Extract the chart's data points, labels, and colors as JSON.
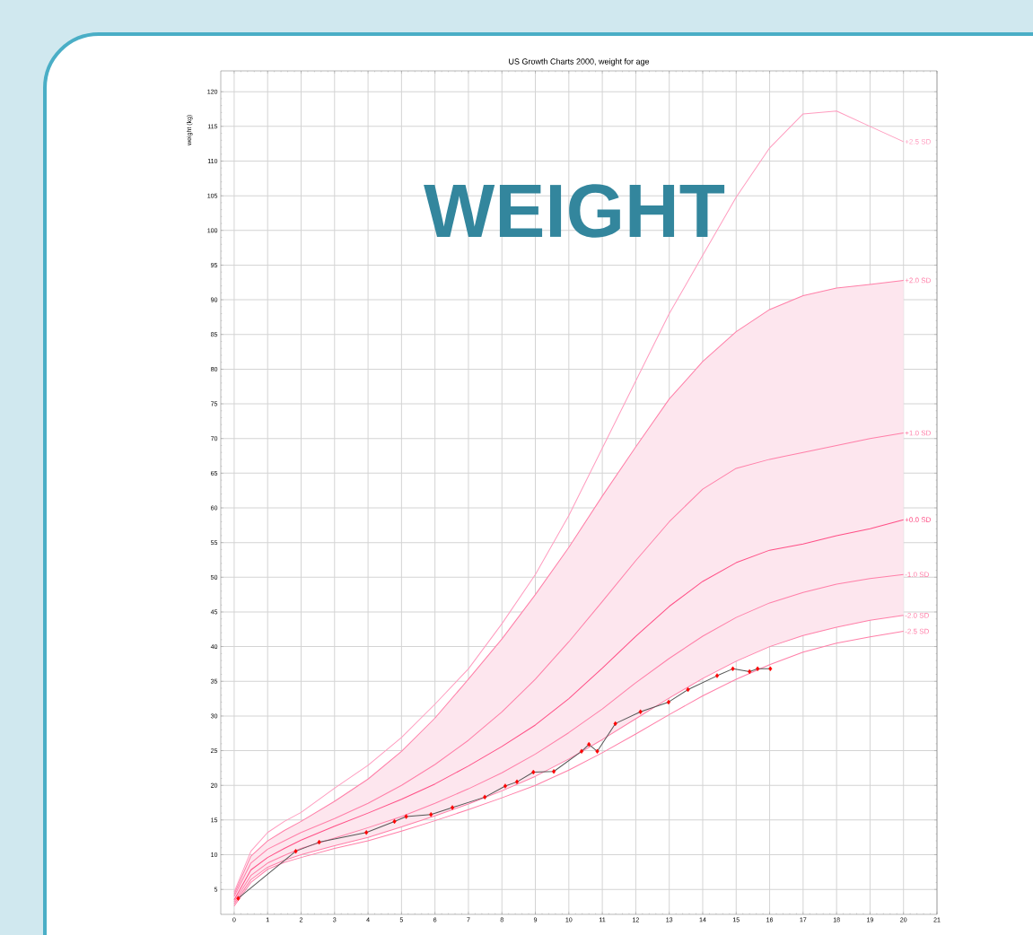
{
  "chart_data": {
    "type": "line",
    "title": "US Growth Charts 2000, weight for age",
    "ylabel": "weight (kg)",
    "annotations": [
      "WEIGHT"
    ],
    "x": [
      0,
      0.5,
      1,
      1.5,
      2,
      3,
      4,
      5,
      6,
      7,
      8,
      9,
      10,
      11,
      12,
      13,
      14,
      15,
      16,
      17,
      18,
      19,
      20
    ],
    "series": [
      {
        "name": "+2.5 SD",
        "color": "#ff9cbf",
        "values": [
          4.6,
          10.5,
          13.2,
          14.8,
          16.1,
          19.6,
          22.9,
          26.9,
          31.7,
          36.8,
          43.3,
          50.4,
          58.9,
          68.6,
          78.3,
          88.0,
          96.4,
          104.8,
          111.9,
          116.8,
          117.2,
          115.0,
          112.8
        ]
      },
      {
        "name": "+2.0 SD",
        "color": "#ff7fa8",
        "values": [
          4.3,
          9.8,
          12.0,
          13.5,
          14.8,
          17.7,
          20.9,
          24.9,
          29.7,
          35.3,
          41.1,
          47.5,
          54.3,
          61.7,
          68.8,
          75.7,
          81.1,
          85.4,
          88.6,
          90.6,
          91.7,
          92.2,
          92.8
        ]
      },
      {
        "name": "+1.0 SD",
        "color": "#ff7fa8",
        "values": [
          4.0,
          8.8,
          10.8,
          12.0,
          13.2,
          15.2,
          17.4,
          20.0,
          23.0,
          26.5,
          30.6,
          35.3,
          40.7,
          46.5,
          52.4,
          58.0,
          62.7,
          65.7,
          67.0,
          68.0,
          69.0,
          70.0,
          70.8
        ]
      },
      {
        "name": "+0.0 SD",
        "color": "#ff4f86",
        "values": [
          3.5,
          7.8,
          9.6,
          10.9,
          12.1,
          14.1,
          16.0,
          18.0,
          20.2,
          22.8,
          25.6,
          28.7,
          32.5,
          36.9,
          41.5,
          45.8,
          49.4,
          52.1,
          53.9,
          54.8,
          56.0,
          57.0,
          58.3
        ],
        "lower": [
          2.9,
          6.4,
          8.2,
          9.2,
          10.0,
          11.3,
          12.5,
          14.0,
          15.6,
          17.3,
          19.2,
          21.3,
          23.8,
          26.6,
          29.6,
          32.6,
          35.4,
          37.9,
          40.0,
          41.6,
          42.8,
          43.8,
          44.5
        ],
        "upper": [
          4.3,
          9.8,
          12.0,
          13.5,
          14.8,
          17.7,
          20.9,
          24.9,
          29.7,
          35.3,
          41.1,
          47.5,
          54.3,
          61.7,
          68.8,
          75.7,
          81.1,
          85.4,
          88.6,
          90.6,
          91.7,
          92.2,
          92.8
        ]
      },
      {
        "name": "-1.0 SD",
        "color": "#ff7fa8",
        "values": [
          3.2,
          7.0,
          8.8,
          9.9,
          10.9,
          12.4,
          13.9,
          15.5,
          17.4,
          19.5,
          21.8,
          24.5,
          27.6,
          31.0,
          34.8,
          38.3,
          41.5,
          44.2,
          46.3,
          47.8,
          49.0,
          49.8,
          50.4
        ]
      },
      {
        "name": "-2.0 SD",
        "color": "#ff7fa8",
        "values": [
          2.9,
          6.4,
          8.2,
          9.2,
          10.0,
          11.3,
          12.5,
          14.0,
          15.6,
          17.3,
          19.2,
          21.3,
          23.8,
          26.6,
          29.6,
          32.6,
          35.4,
          37.9,
          40.0,
          41.6,
          42.8,
          43.8,
          44.5
        ]
      },
      {
        "name": "-2.5 SD",
        "color": "#ff7fa8",
        "values": [
          2.6,
          6.0,
          7.9,
          8.9,
          9.6,
          10.9,
          12.0,
          13.4,
          14.9,
          16.5,
          18.2,
          20.0,
          22.2,
          24.7,
          27.4,
          30.2,
          32.9,
          35.3,
          37.4,
          39.2,
          40.5,
          41.4,
          42.2
        ]
      },
      {
        "type": "line",
        "color": "#555555",
        "x": [
          0.12,
          1.84,
          2.54,
          3.95,
          4.79,
          5.14,
          5.88,
          6.52,
          7.49,
          8.1,
          8.45,
          8.94,
          9.55,
          10.38,
          10.6,
          10.85,
          11.39,
          12.14,
          12.98,
          13.56,
          14.43,
          14.9,
          15.4,
          15.64,
          16.02
        ],
        "values": [
          3.7,
          10.5,
          11.8,
          13.2,
          14.8,
          15.5,
          15.8,
          16.8,
          18.3,
          19.9,
          20.5,
          21.9,
          22.0,
          24.9,
          25.9,
          24.9,
          28.9,
          30.6,
          32.0,
          33.8,
          35.8,
          36.8,
          36.4,
          36.8,
          36.8
        ]
      },
      {
        "type": "scatter",
        "marker": "diamond",
        "color": "#ff0000",
        "x": [
          0.12,
          1.84,
          2.54,
          3.95,
          4.79,
          5.14,
          5.88,
          6.52,
          7.49,
          8.1,
          8.45,
          8.94,
          9.55,
          10.38,
          10.6,
          10.85,
          11.39,
          12.14,
          12.98,
          13.56,
          14.43,
          14.9,
          15.4,
          15.64,
          16.02
        ],
        "values": [
          3.7,
          10.5,
          11.8,
          13.2,
          14.8,
          15.5,
          15.8,
          16.8,
          18.3,
          19.9,
          20.5,
          21.9,
          22.0,
          24.9,
          25.9,
          24.9,
          28.9,
          30.6,
          32.0,
          33.8,
          35.8,
          36.8,
          36.4,
          36.8,
          36.8
        ]
      }
    ],
    "xlim": [
      -0.4,
      21
    ],
    "ylim": [
      1.4,
      123
    ],
    "xticks": [
      0,
      1,
      2,
      3,
      4,
      5,
      6,
      7,
      8,
      9,
      10,
      11,
      12,
      13,
      14,
      15,
      16,
      17,
      18,
      19,
      20,
      21
    ],
    "yticks": [
      5,
      10,
      15,
      20,
      25,
      30,
      35,
      40,
      45,
      50,
      55,
      60,
      65,
      70,
      75,
      80,
      85,
      90,
      95,
      100,
      105,
      110,
      115,
      120
    ],
    "grid": true
  }
}
